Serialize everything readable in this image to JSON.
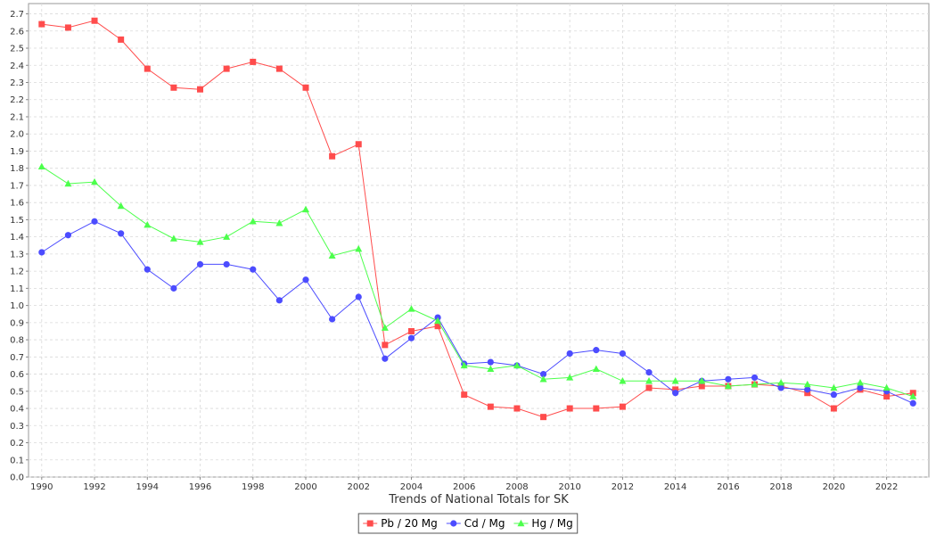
{
  "chart_data": {
    "type": "line",
    "title": "",
    "xlabel": "Trends of National Totals for SK",
    "ylabel": "",
    "xlim": [
      1989.5,
      2023.6
    ],
    "ylim": [
      0,
      2.76
    ],
    "x_ticks": [
      1990,
      1992,
      1994,
      1996,
      1998,
      2000,
      2002,
      2004,
      2006,
      2008,
      2010,
      2012,
      2014,
      2016,
      2018,
      2020,
      2022
    ],
    "y_ticks": [
      0.0,
      0.1,
      0.2,
      0.3,
      0.4,
      0.5,
      0.6,
      0.7,
      0.8,
      0.9,
      1.0,
      1.1,
      1.2,
      1.3,
      1.4,
      1.5,
      1.6,
      1.7,
      1.8,
      1.9,
      2.0,
      2.1,
      2.2,
      2.3,
      2.4,
      2.5,
      2.6,
      2.7
    ],
    "y_tick_labels": [
      "0.0",
      "0.1",
      "0.2",
      "0.3",
      "0.4",
      "0.5",
      "0.6",
      "0.7",
      "0.8",
      "0.9",
      "1.0",
      "1.1",
      "1.2",
      "1.3",
      "1.4",
      "1.5",
      "1.6",
      "1.7",
      "1.8",
      "1.9",
      "2.0",
      "2.1",
      "2.2",
      "2.3",
      "2.4",
      "2.5",
      "2.6",
      "2.7"
    ],
    "grid": true,
    "legend_position": "bottom-center",
    "x": [
      1990,
      1991,
      1992,
      1993,
      1994,
      1995,
      1996,
      1997,
      1998,
      1999,
      2000,
      2001,
      2002,
      2003,
      2004,
      2005,
      2006,
      2007,
      2008,
      2009,
      2010,
      2011,
      2012,
      2013,
      2014,
      2015,
      2016,
      2017,
      2018,
      2019,
      2020,
      2021,
      2022,
      2023
    ],
    "series": [
      {
        "name": "Pb / 20 Mg",
        "color": "#ff4c4c",
        "marker": "square",
        "values": [
          2.64,
          2.62,
          2.66,
          2.55,
          2.38,
          2.27,
          2.26,
          2.38,
          2.42,
          2.38,
          2.27,
          1.87,
          1.94,
          0.77,
          0.85,
          0.88,
          0.48,
          0.41,
          0.4,
          0.35,
          0.4,
          0.4,
          0.41,
          0.52,
          0.51,
          0.53,
          0.53,
          0.54,
          0.53,
          0.49,
          0.4,
          0.51,
          0.47,
          0.49
        ]
      },
      {
        "name": "Cd / Mg",
        "color": "#4c4cff",
        "marker": "circle",
        "values": [
          1.31,
          1.41,
          1.49,
          1.42,
          1.21,
          1.1,
          1.24,
          1.24,
          1.21,
          1.03,
          1.15,
          0.92,
          1.05,
          0.69,
          0.81,
          0.93,
          0.66,
          0.67,
          0.65,
          0.6,
          0.72,
          0.74,
          0.72,
          0.61,
          0.49,
          0.56,
          0.57,
          0.58,
          0.52,
          0.51,
          0.48,
          0.52,
          0.5,
          0.43
        ]
      },
      {
        "name": "Hg / Mg",
        "color": "#4cff4c",
        "marker": "triangle",
        "values": [
          1.81,
          1.71,
          1.72,
          1.58,
          1.47,
          1.39,
          1.37,
          1.4,
          1.49,
          1.48,
          1.56,
          1.29,
          1.33,
          0.87,
          0.98,
          0.91,
          0.65,
          0.63,
          0.65,
          0.57,
          0.58,
          0.63,
          0.56,
          0.56,
          0.56,
          0.56,
          0.53,
          0.54,
          0.55,
          0.54,
          0.52,
          0.55,
          0.52,
          0.47
        ]
      }
    ]
  }
}
